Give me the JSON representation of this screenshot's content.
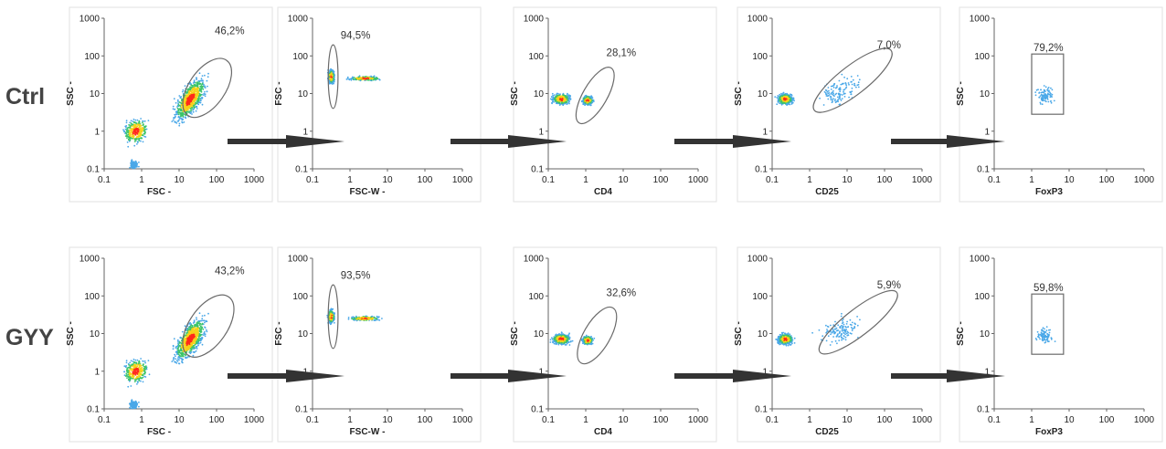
{
  "rows": [
    {
      "label": "Ctrl",
      "percents": [
        "46,2%",
        "94,5%",
        "28,1%",
        "7,0%",
        "79,2%"
      ]
    },
    {
      "label": "GYY",
      "percents": [
        "43,2%",
        "93,5%",
        "32,6%",
        "5,9%",
        "59,8%"
      ]
    }
  ],
  "colors": {
    "density_low": "#4aa8e8",
    "density_high": "#ff2a1a",
    "gate": "#6a6a6a",
    "arrow": "#333333"
  },
  "chart_data": [
    {
      "type": "scatter",
      "row": "Ctrl",
      "step": 1,
      "xlabel": "FSC -",
      "ylabel": "SSC -",
      "gate_shape": "ellipse",
      "gate_percent": "46,2%",
      "x_ticks": [
        "0.1",
        "1",
        "10",
        "100",
        "1000"
      ],
      "y_ticks": [
        "0.1",
        "1",
        "10",
        "100",
        "1000"
      ],
      "scale": "log",
      "xlim": [
        0.1,
        1000
      ],
      "ylim": [
        0.1,
        1000
      ]
    },
    {
      "type": "scatter",
      "row": "Ctrl",
      "step": 2,
      "xlabel": "FSC-W -",
      "ylabel": "FSC -",
      "gate_shape": "ellipse",
      "gate_percent": "94,5%",
      "x_ticks": [
        "0.1",
        "1",
        "10",
        "100",
        "1000"
      ],
      "y_ticks": [
        "0.1",
        "1",
        "10",
        "100",
        "1000"
      ],
      "scale": "log",
      "xlim": [
        0.1,
        1000
      ],
      "ylim": [
        0.1,
        1000
      ]
    },
    {
      "type": "scatter",
      "row": "Ctrl",
      "step": 3,
      "xlabel": "CD4",
      "ylabel": "SSC -",
      "gate_shape": "ellipse",
      "gate_percent": "28,1%",
      "x_ticks": [
        "0.1",
        "1",
        "10",
        "100",
        "1000"
      ],
      "y_ticks": [
        "0.1",
        "1",
        "10",
        "100",
        "1000"
      ],
      "scale": "log",
      "xlim": [
        0.1,
        1000
      ],
      "ylim": [
        0.1,
        1000
      ]
    },
    {
      "type": "scatter",
      "row": "Ctrl",
      "step": 4,
      "xlabel": "CD25",
      "ylabel": "SSC -",
      "gate_shape": "ellipse",
      "gate_percent": "7,0%",
      "x_ticks": [
        "0.1",
        "1",
        "10",
        "100",
        "1000"
      ],
      "y_ticks": [
        "0.1",
        "1",
        "10",
        "100",
        "1000"
      ],
      "scale": "log",
      "xlim": [
        0.1,
        1000
      ],
      "ylim": [
        0.1,
        1000
      ]
    },
    {
      "type": "scatter",
      "row": "Ctrl",
      "step": 5,
      "xlabel": "FoxP3",
      "ylabel": "SSC -",
      "gate_shape": "rectangle",
      "gate_percent": "79,2%",
      "x_ticks": [
        "0.1",
        "1",
        "10",
        "100",
        "1000"
      ],
      "y_ticks": [
        "0.1",
        "1",
        "10",
        "100",
        "1000"
      ],
      "scale": "log",
      "xlim": [
        0.1,
        1000
      ],
      "ylim": [
        0.1,
        1000
      ]
    },
    {
      "type": "scatter",
      "row": "GYY",
      "step": 1,
      "xlabel": "FSC -",
      "ylabel": "SSC -",
      "gate_shape": "ellipse",
      "gate_percent": "43,2%",
      "x_ticks": [
        "0.1",
        "1",
        "10",
        "100",
        "1000"
      ],
      "y_ticks": [
        "0.1",
        "1",
        "10",
        "100",
        "1000"
      ],
      "scale": "log",
      "xlim": [
        0.1,
        1000
      ],
      "ylim": [
        0.1,
        1000
      ]
    },
    {
      "type": "scatter",
      "row": "GYY",
      "step": 2,
      "xlabel": "FSC-W -",
      "ylabel": "FSC -",
      "gate_shape": "ellipse",
      "gate_percent": "93,5%",
      "x_ticks": [
        "0.1",
        "1",
        "10",
        "100",
        "1000"
      ],
      "y_ticks": [
        "0.1",
        "1",
        "10",
        "100",
        "1000"
      ],
      "scale": "log",
      "xlim": [
        0.1,
        1000
      ],
      "ylim": [
        0.1,
        1000
      ]
    },
    {
      "type": "scatter",
      "row": "GYY",
      "step": 3,
      "xlabel": "CD4",
      "ylabel": "SSC -",
      "gate_shape": "ellipse",
      "gate_percent": "32,6%",
      "x_ticks": [
        "0.1",
        "1",
        "10",
        "100",
        "1000"
      ],
      "y_ticks": [
        "0.1",
        "1",
        "10",
        "100",
        "1000"
      ],
      "scale": "log",
      "xlim": [
        0.1,
        1000
      ],
      "ylim": [
        0.1,
        1000
      ]
    },
    {
      "type": "scatter",
      "row": "GYY",
      "step": 4,
      "xlabel": "CD25",
      "ylabel": "SSC -",
      "gate_shape": "ellipse",
      "gate_percent": "5,9%",
      "x_ticks": [
        "0.1",
        "1",
        "10",
        "100",
        "1000"
      ],
      "y_ticks": [
        "0.1",
        "1",
        "10",
        "100",
        "1000"
      ],
      "scale": "log",
      "xlim": [
        0.1,
        1000
      ],
      "ylim": [
        0.1,
        1000
      ]
    },
    {
      "type": "scatter",
      "row": "GYY",
      "step": 5,
      "xlabel": "FoxP3",
      "ylabel": "SSC -",
      "gate_shape": "rectangle",
      "gate_percent": "59,8%",
      "x_ticks": [
        "0.1",
        "1",
        "10",
        "100",
        "1000"
      ],
      "y_ticks": [
        "0.1",
        "1",
        "10",
        "100",
        "1000"
      ],
      "scale": "log",
      "xlim": [
        0.1,
        1000
      ],
      "ylim": [
        0.1,
        1000
      ]
    }
  ]
}
